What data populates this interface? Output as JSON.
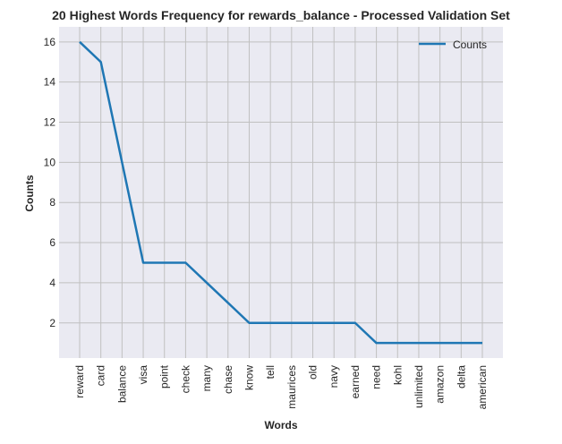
{
  "chart_data": {
    "type": "line",
    "title": "20 Highest Words Frequency for rewards_balance - Processed Validation Set",
    "xlabel": "Words",
    "ylabel": "Counts",
    "categories": [
      "reward",
      "card",
      "balance",
      "visa",
      "point",
      "check",
      "many",
      "chase",
      "know",
      "tell",
      "maurices",
      "old",
      "navy",
      "earned",
      "need",
      "kohl",
      "unlimited",
      "amazon",
      "delta",
      "american"
    ],
    "series": [
      {
        "name": "Counts",
        "values": [
          16,
          15,
          10,
          5,
          5,
          5,
          4,
          3,
          2,
          2,
          2,
          2,
          2,
          2,
          1,
          1,
          1,
          1,
          1,
          1
        ]
      }
    ],
    "ylim": [
      0.25,
      16.75
    ],
    "yticks": [
      2,
      4,
      6,
      8,
      10,
      12,
      14,
      16
    ],
    "grid": true,
    "legend": "top-right",
    "colors": {
      "line": "#1f77b4",
      "plot_bg": "#eaeaf2",
      "grid": "#c0c0c0"
    }
  }
}
